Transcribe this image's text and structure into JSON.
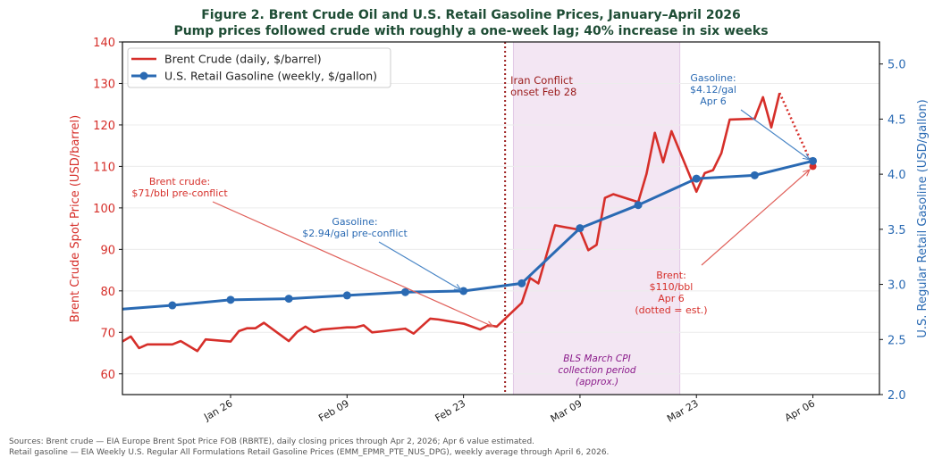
{
  "chart_data": {
    "type": "line",
    "title": "Figure 2. Brent Crude Oil and U.S. Retail Gasoline Prices, January–April 2026",
    "subtitle": "Pump prices followed crude with roughly a one-week lag; 40% increase in six weeks",
    "xlabel": "",
    "ylabel_left": "Brent Crude Spot Price (USD/barrel)",
    "ylabel_right": "U.S. Regular Retail Gasoline (USD/gallon)",
    "xlim": [
      "2026-01-13",
      "2026-04-14"
    ],
    "ylim_left": [
      55,
      140
    ],
    "ylim_right": [
      2.0,
      5.2
    ],
    "xticks": [
      {
        "date": "2026-01-26",
        "label": "Jan 26"
      },
      {
        "date": "2026-02-09",
        "label": "Feb 09"
      },
      {
        "date": "2026-02-23",
        "label": "Feb 23"
      },
      {
        "date": "2026-03-09",
        "label": "Mar 09"
      },
      {
        "date": "2026-03-23",
        "label": "Mar 23"
      },
      {
        "date": "2026-04-06",
        "label": "Apr 06"
      }
    ],
    "yticks_left": [
      60,
      70,
      80,
      90,
      100,
      110,
      120,
      130,
      140
    ],
    "yticks_right": [
      "2.0",
      "2.5",
      "3.0",
      "3.5",
      "4.0",
      "4.5",
      "5.0"
    ],
    "grid": true,
    "legend_position": "top-left",
    "colors": {
      "brent": "#d62f2a",
      "gasoline": "#2a6ab3",
      "title": "#1e4d35",
      "conflict_line": "#9b1c1c",
      "shade": "#f3e6f3",
      "shade_text": "#8a1a8a"
    },
    "series": [
      {
        "name": "Brent Crude (daily, $/barrel)",
        "axis": "left",
        "x": [
          "2026-01-13",
          "2026-01-14",
          "2026-01-15",
          "2026-01-16",
          "2026-01-19",
          "2026-01-20",
          "2026-01-21",
          "2026-01-22",
          "2026-01-23",
          "2026-01-26",
          "2026-01-27",
          "2026-01-28",
          "2026-01-29",
          "2026-01-30",
          "2026-02-02",
          "2026-02-03",
          "2026-02-04",
          "2026-02-05",
          "2026-02-06",
          "2026-02-09",
          "2026-02-10",
          "2026-02-11",
          "2026-02-12",
          "2026-02-13",
          "2026-02-16",
          "2026-02-17",
          "2026-02-18",
          "2026-02-19",
          "2026-02-20",
          "2026-02-23",
          "2026-02-24",
          "2026-02-25",
          "2026-02-26",
          "2026-02-27",
          "2026-03-02",
          "2026-03-03",
          "2026-03-04",
          "2026-03-05",
          "2026-03-06",
          "2026-03-09",
          "2026-03-10",
          "2026-03-11",
          "2026-03-12",
          "2026-03-13",
          "2026-03-16",
          "2026-03-17",
          "2026-03-18",
          "2026-03-19",
          "2026-03-20",
          "2026-03-23",
          "2026-03-24",
          "2026-03-25",
          "2026-03-26",
          "2026-03-27",
          "2026-03-30",
          "2026-03-31",
          "2026-04-01",
          "2026-04-02"
        ],
        "values": [
          67.8,
          69.0,
          66.2,
          67.1,
          67.1,
          67.9,
          66.7,
          65.5,
          68.3,
          67.8,
          70.3,
          71.0,
          71.0,
          72.3,
          67.9,
          70.1,
          71.4,
          70.1,
          70.7,
          71.2,
          71.2,
          71.7,
          70.0,
          70.2,
          70.9,
          69.7,
          71.5,
          73.3,
          73.1,
          72.1,
          71.4,
          70.7,
          71.7,
          71.4,
          77.1,
          83.1,
          81.8,
          88.8,
          95.8,
          94.7,
          89.8,
          91.1,
          102.4,
          103.3,
          101.4,
          108.2,
          118.1,
          111.0,
          118.5,
          103.9,
          108.4,
          109.1,
          113.2,
          121.3,
          121.5,
          126.7,
          119.4,
          127.7
        ],
        "estimate": {
          "x": "2026-04-06",
          "value": 110
        }
      },
      {
        "name": "U.S. Retail Gasoline (weekly, $/gallon)",
        "axis": "right",
        "x": [
          "2026-01-12",
          "2026-01-19",
          "2026-01-26",
          "2026-02-02",
          "2026-02-09",
          "2026-02-16",
          "2026-02-23",
          "2026-03-02",
          "2026-03-09",
          "2026-03-16",
          "2026-03-23",
          "2026-03-30",
          "2026-04-06"
        ],
        "values": [
          2.77,
          2.81,
          2.86,
          2.87,
          2.9,
          2.93,
          2.94,
          3.01,
          3.51,
          3.72,
          3.96,
          3.99,
          4.12
        ]
      }
    ],
    "events": {
      "conflict_date": "2026-02-28",
      "conflict_label": [
        "Iran Conflict",
        "onset Feb 28"
      ],
      "shade_range": [
        "2026-03-01",
        "2026-03-21"
      ],
      "shade_label": [
        "BLS March CPI",
        "collection period",
        "(approx.)"
      ]
    },
    "annotations": {
      "brent_pre": [
        "Brent crude:",
        "$71/bbl pre-conflict"
      ],
      "gas_pre": [
        "Gasoline:",
        "$2.94/gal pre-conflict"
      ],
      "gas_apr": [
        "Gasoline:",
        "$4.12/gal",
        "Apr 6"
      ],
      "brent_apr": [
        "Brent:",
        "$110/bbl",
        "Apr 6",
        "(dotted = est.)"
      ]
    }
  },
  "footer": {
    "line1": "Sources: Brent crude — EIA Europe Brent Spot Price FOB (RBRTE), daily closing prices through Apr 2, 2026; Apr 6 value estimated.",
    "line2": "Retail gasoline — EIA Weekly U.S. Regular All Formulations Retail Gasoline Prices (EMM_EPMR_PTE_NUS_DPG), weekly average through April 6, 2026."
  }
}
